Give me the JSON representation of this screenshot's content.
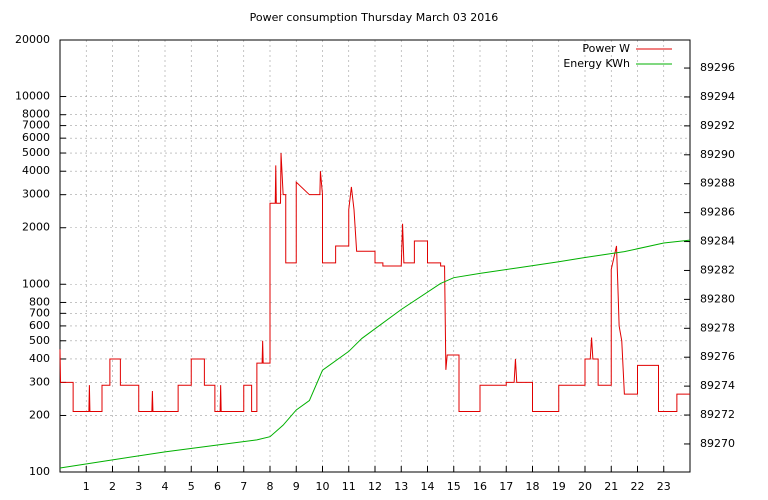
{
  "chart_data": {
    "type": "line",
    "title": "Power consumption Thursday March 03 2016",
    "xlim": [
      0,
      24
    ],
    "xticks": [
      1,
      2,
      3,
      4,
      5,
      6,
      7,
      8,
      9,
      10,
      11,
      12,
      13,
      14,
      15,
      16,
      17,
      18,
      19,
      20,
      21,
      22,
      23
    ],
    "ylim": [
      100,
      20000
    ],
    "yscale": "log",
    "yticks": [
      100,
      200,
      300,
      400,
      500,
      600,
      700,
      800,
      1000,
      2000,
      3000,
      4000,
      5000,
      6000,
      7000,
      8000,
      10000,
      20000
    ],
    "y2lim": [
      89268.06,
      89297.94
    ],
    "y2ticks": [
      89270,
      89272,
      89274,
      89276,
      89278,
      89280,
      89282,
      89284,
      89286,
      89288,
      89290,
      89292,
      89294,
      89296
    ],
    "grid": true,
    "legend": "top-right",
    "series": [
      {
        "name": "Power W",
        "color": "#e00000",
        "x": [
          0,
          0.02,
          0.5,
          0.5,
          1.1,
          1.12,
          1.14,
          1.6,
          1.6,
          1.9,
          1.9,
          2.3,
          2.3,
          3.0,
          3.0,
          3.5,
          3.52,
          3.54,
          4.5,
          4.5,
          5.0,
          5.0,
          5.5,
          5.5,
          5.9,
          5.9,
          6.1,
          6.12,
          6.14,
          7.0,
          7.0,
          7.3,
          7.3,
          7.5,
          7.5,
          7.7,
          7.72,
          7.74,
          8.0,
          8.0,
          8.2,
          8.22,
          8.24,
          8.4,
          8.42,
          8.5,
          8.6,
          8.6,
          9.0,
          9.0,
          9.5,
          9.9,
          9.92,
          10.0,
          10.0,
          10.5,
          10.5,
          11.0,
          11.0,
          11.1,
          11.2,
          11.3,
          12.0,
          12.0,
          12.3,
          12.3,
          13.0,
          13.05,
          13.1,
          13.5,
          13.5,
          14.0,
          14.0,
          14.5,
          14.5,
          14.65,
          14.7,
          14.75,
          15.2,
          15.2,
          16.0,
          16.0,
          17.0,
          17.0,
          17.3,
          17.35,
          17.4,
          18.0,
          18.0,
          19.0,
          19.0,
          20.0,
          20.0,
          20.2,
          20.25,
          20.3,
          20.5,
          20.5,
          21.0,
          21.0,
          21.2,
          21.25,
          21.3,
          21.4,
          21.5,
          22.0,
          22.0,
          22.8,
          22.8,
          23.5,
          23.5,
          24
        ],
        "values": [
          450,
          300,
          300,
          210,
          210,
          290,
          210,
          210,
          290,
          290,
          400,
          400,
          290,
          290,
          210,
          210,
          270,
          210,
          210,
          290,
          290,
          400,
          400,
          290,
          290,
          210,
          210,
          290,
          210,
          210,
          290,
          290,
          210,
          210,
          380,
          380,
          500,
          380,
          380,
          2700,
          2700,
          4300,
          2700,
          2700,
          5000,
          3000,
          3000,
          1300,
          1300,
          3500,
          3000,
          3000,
          4000,
          3000,
          1300,
          1300,
          1600,
          1600,
          2500,
          3300,
          2500,
          1500,
          1500,
          1300,
          1300,
          1250,
          1250,
          2100,
          1300,
          1300,
          1700,
          1700,
          1300,
          1300,
          1250,
          1250,
          350,
          420,
          420,
          210,
          210,
          290,
          290,
          300,
          300,
          400,
          300,
          300,
          210,
          210,
          290,
          290,
          400,
          400,
          520,
          400,
          400,
          290,
          290,
          1200,
          1600,
          1000,
          600,
          500,
          260,
          260,
          370,
          370,
          210,
          210,
          260,
          260
        ]
      },
      {
        "name": "Energy KWh",
        "color": "#00b000",
        "axis": "y2",
        "x": [
          0,
          2,
          4,
          6,
          7.5,
          8,
          8.5,
          9,
          9.5,
          10,
          11,
          11.5,
          13,
          14.5,
          15,
          16,
          17.5,
          19,
          20,
          21.5,
          23,
          24
        ],
        "values": [
          89268.34,
          89268.9,
          89269.45,
          89269.93,
          89270.28,
          89270.5,
          89271.3,
          89272.35,
          89273,
          89275.1,
          89276.4,
          89277.3,
          89279.3,
          89281.1,
          89281.5,
          89281.8,
          89282.2,
          89282.6,
          89282.9,
          89283.3,
          89283.9,
          89284.1
        ]
      }
    ]
  }
}
